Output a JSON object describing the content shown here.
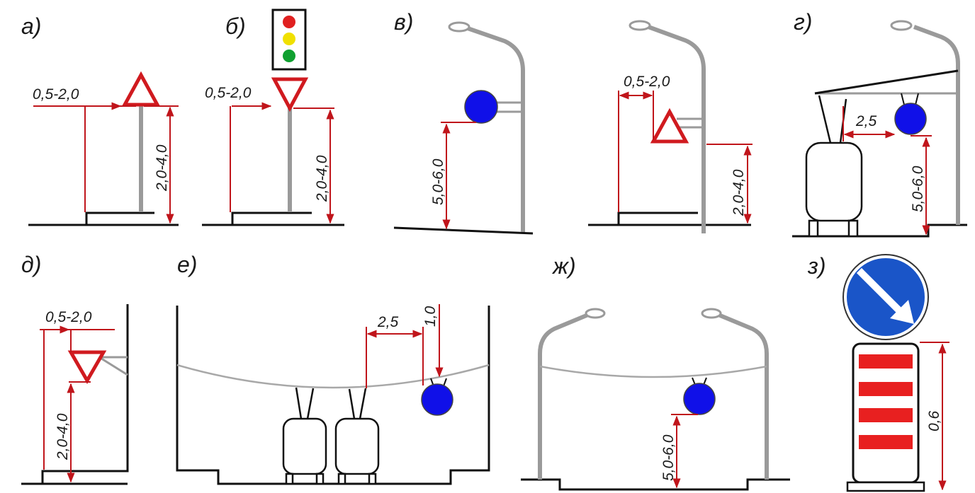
{
  "panels": {
    "a": {
      "label": "а)",
      "dim_horizontal": "0,5-2,0",
      "dim_vertical": "2,0-4,0"
    },
    "b": {
      "label": "б)",
      "dim_horizontal": "0,5-2,0",
      "dim_vertical": "2,0-4,0"
    },
    "v": {
      "label": "в)",
      "dim_vertical_left": "5,0-6,0",
      "dim_horizontal": "0,5-2,0",
      "dim_vertical_right": "2,0-4,0"
    },
    "g": {
      "label": "г)",
      "dim_horizontal": "2,5",
      "dim_vertical": "5,0-6,0"
    },
    "d": {
      "label": "д)",
      "dim_horizontal": "0,5-2,0",
      "dim_vertical": "2,0-4,0"
    },
    "e": {
      "label": "е)",
      "dim_horizontal": "2,5",
      "dim_vertical": "1,0"
    },
    "zh": {
      "label": "ж)",
      "dim_vertical": "5,0-6,0"
    },
    "z": {
      "label": "з)",
      "dim_vertical": "0,6"
    }
  },
  "colors": {
    "dimension_red": "#c0151b",
    "sign_border_red": "#d01a1f",
    "sign_blue": "#1010e8",
    "road_sign_blue": "#1a55c8",
    "pole_gray": "#9a9a9a",
    "light_red": "#e02020",
    "light_yellow": "#f0e000",
    "light_green": "#10a030"
  },
  "icons": {
    "traffic_light": "traffic-light-icon",
    "yield_sign": "triangle-sign-icon",
    "round_sign": "round-sign-icon",
    "keep_right_sign": "keep-right-sign-icon"
  }
}
